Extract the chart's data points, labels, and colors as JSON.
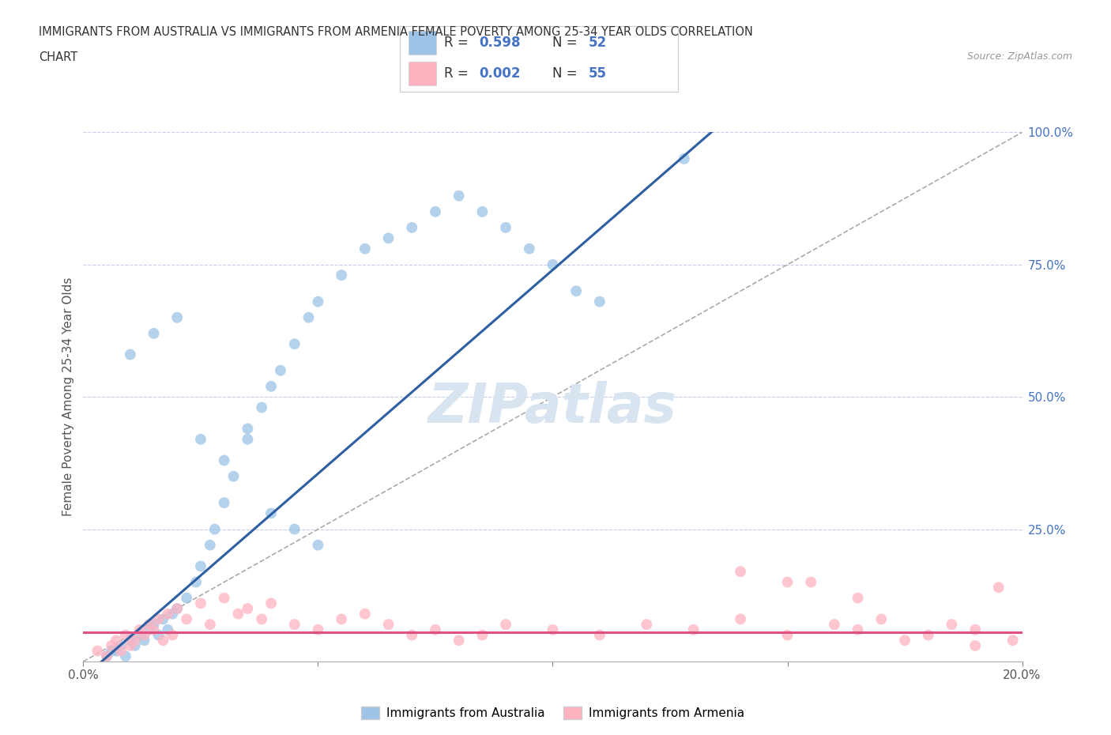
{
  "title_line1": "IMMIGRANTS FROM AUSTRALIA VS IMMIGRANTS FROM ARMENIA FEMALE POVERTY AMONG 25-34 YEAR OLDS CORRELATION",
  "title_line2": "CHART",
  "source_text": "Source: ZipAtlas.com",
  "ylabel": "Female Poverty Among 25-34 Year Olds",
  "xlim": [
    0.0,
    0.2
  ],
  "ylim": [
    0.0,
    1.0
  ],
  "R_australia": 0.598,
  "N_australia": 52,
  "R_armenia": 0.002,
  "N_armenia": 55,
  "color_australia": "#9DC3E6",
  "color_armenia": "#FFB3C1",
  "line_color_australia": "#2E5FA3",
  "line_color_armenia": "#E05080",
  "diagonal_color": "#AAAAAA",
  "grid_color": "#C5CDE8",
  "watermark_color": "#D8E4F0",
  "background_color": "#FFFFFF",
  "legend_label_australia": "Immigrants from Australia",
  "legend_label_armenia": "Immigrants from Armenia",
  "tick_label_color": "#4472C4",
  "axis_label_color": "#555555",
  "australia_x": [
    0.005,
    0.006,
    0.007,
    0.008,
    0.009,
    0.01,
    0.011,
    0.012,
    0.013,
    0.014,
    0.015,
    0.016,
    0.017,
    0.018,
    0.019,
    0.02,
    0.022,
    0.024,
    0.025,
    0.027,
    0.028,
    0.03,
    0.032,
    0.035,
    0.038,
    0.04,
    0.042,
    0.045,
    0.048,
    0.05,
    0.055,
    0.06,
    0.065,
    0.07,
    0.075,
    0.08,
    0.085,
    0.09,
    0.095,
    0.1,
    0.105,
    0.11,
    0.01,
    0.015,
    0.02,
    0.025,
    0.03,
    0.035,
    0.04,
    0.045,
    0.05,
    0.128
  ],
  "australia_y": [
    0.01,
    0.02,
    0.02,
    0.03,
    0.01,
    0.04,
    0.03,
    0.05,
    0.04,
    0.06,
    0.07,
    0.05,
    0.08,
    0.06,
    0.09,
    0.1,
    0.12,
    0.15,
    0.18,
    0.22,
    0.25,
    0.3,
    0.35,
    0.42,
    0.48,
    0.52,
    0.55,
    0.6,
    0.65,
    0.68,
    0.73,
    0.78,
    0.8,
    0.82,
    0.85,
    0.88,
    0.85,
    0.82,
    0.78,
    0.75,
    0.7,
    0.68,
    0.58,
    0.62,
    0.65,
    0.42,
    0.38,
    0.44,
    0.28,
    0.25,
    0.22,
    0.95
  ],
  "armenia_x": [
    0.003,
    0.005,
    0.006,
    0.007,
    0.008,
    0.009,
    0.01,
    0.011,
    0.012,
    0.013,
    0.014,
    0.015,
    0.016,
    0.017,
    0.018,
    0.019,
    0.02,
    0.022,
    0.025,
    0.027,
    0.03,
    0.033,
    0.035,
    0.038,
    0.04,
    0.045,
    0.05,
    0.055,
    0.06,
    0.065,
    0.07,
    0.075,
    0.08,
    0.085,
    0.09,
    0.1,
    0.11,
    0.12,
    0.13,
    0.14,
    0.15,
    0.155,
    0.16,
    0.165,
    0.17,
    0.175,
    0.18,
    0.185,
    0.19,
    0.195,
    0.198,
    0.14,
    0.15,
    0.165,
    0.19
  ],
  "armenia_y": [
    0.02,
    0.01,
    0.03,
    0.04,
    0.02,
    0.05,
    0.03,
    0.04,
    0.06,
    0.05,
    0.07,
    0.06,
    0.08,
    0.04,
    0.09,
    0.05,
    0.1,
    0.08,
    0.11,
    0.07,
    0.12,
    0.09,
    0.1,
    0.08,
    0.11,
    0.07,
    0.06,
    0.08,
    0.09,
    0.07,
    0.05,
    0.06,
    0.04,
    0.05,
    0.07,
    0.06,
    0.05,
    0.07,
    0.06,
    0.08,
    0.05,
    0.15,
    0.07,
    0.06,
    0.08,
    0.04,
    0.05,
    0.07,
    0.03,
    0.14,
    0.04,
    0.17,
    0.15,
    0.12,
    0.06
  ]
}
